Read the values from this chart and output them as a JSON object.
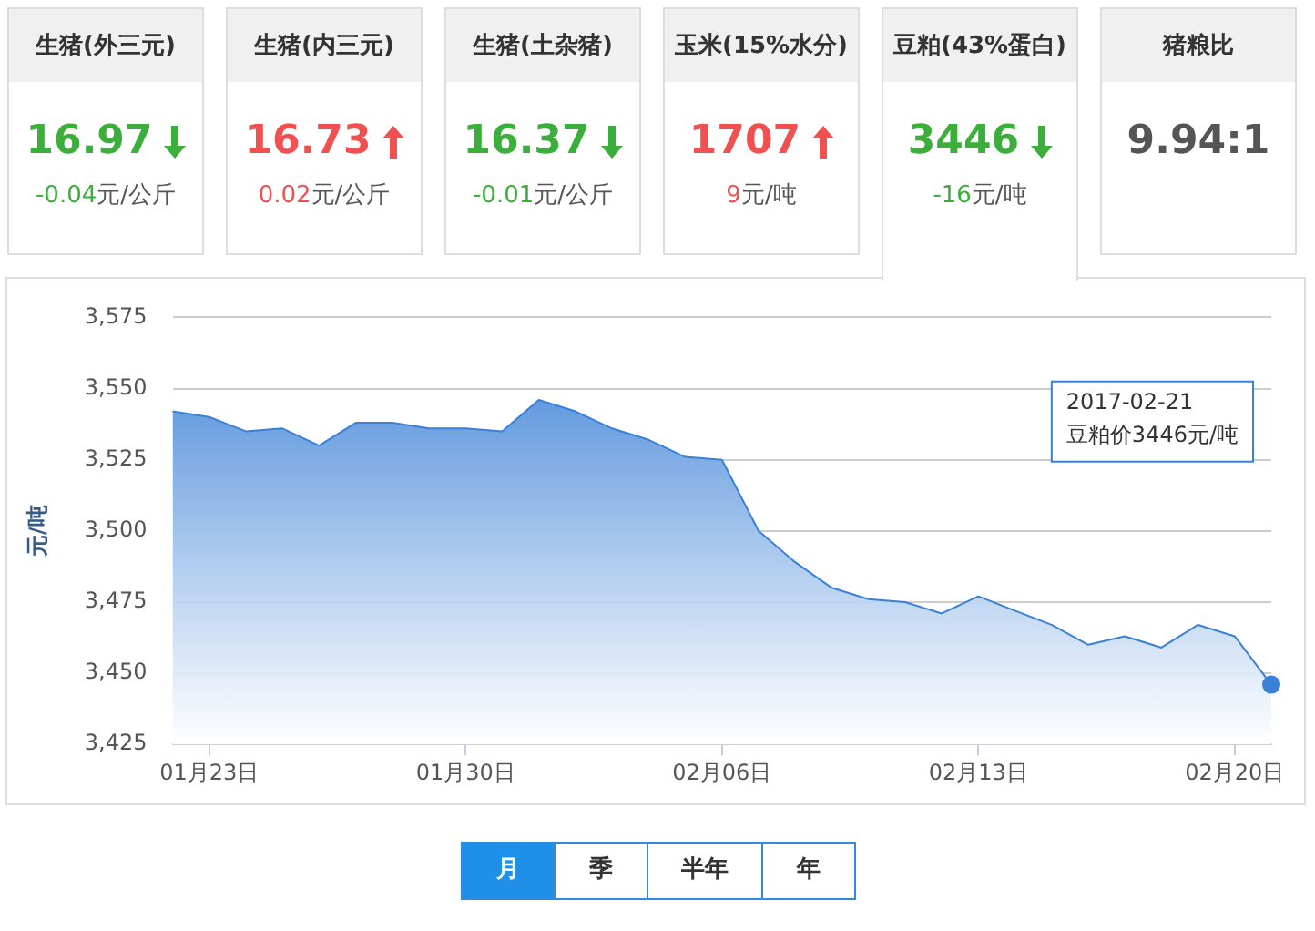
{
  "chart_data": [
    {
      "type": "other",
      "categories": [
        "生猪(外三元)",
        "生猪(内三元)",
        "生猪(土杂猪)",
        "玉米(15%水分)",
        "豆粕(43%蛋白)",
        "猪粮比"
      ],
      "value_labels": [
        "16.97",
        "16.73",
        "16.37",
        "1707",
        "3446",
        "9.94:1"
      ],
      "annotations": [
        "-0.04",
        "元/公斤",
        "0.02",
        "元/公斤",
        "-0.01",
        "元/公斤",
        "9",
        "元/吨",
        "-16",
        "元/吨"
      ]
    },
    {
      "type": "area",
      "ylabel": "元/吨",
      "categories": [
        null,
        "01月23日",
        null,
        null,
        null,
        null,
        null,
        null,
        "01月30日",
        null,
        null,
        null,
        null,
        null,
        null,
        "02月06日",
        null,
        null,
        null,
        null,
        null,
        null,
        "02月13日",
        null,
        null,
        null,
        null,
        null,
        null,
        "02月20日",
        null
      ],
      "series": [
        {
          "color": "#3a80d6",
          "values": [
            3542,
            3540,
            3535,
            3536,
            3530,
            3538,
            3538,
            3536,
            3536,
            3535,
            3546,
            3542,
            3536,
            3532,
            3526,
            3525,
            3500,
            3489,
            3480,
            3476,
            3475,
            3471,
            3477,
            3472,
            3467,
            3460,
            3463,
            3459,
            3467,
            3463,
            3446
          ]
        }
      ],
      "ylim": [
        3425,
        3575
      ],
      "yticks": [
        {
          "value": 3425,
          "label": "3,425"
        },
        {
          "value": 3450,
          "label": "3,450"
        },
        {
          "value": 3475,
          "label": "3,475"
        },
        {
          "value": 3500,
          "label": "3,500"
        },
        {
          "value": 3525,
          "label": "3,525"
        },
        {
          "value": 3550,
          "label": "3,550"
        },
        {
          "value": 3575,
          "label": "3,575"
        }
      ],
      "grid": "y",
      "legend": false,
      "marker": "none",
      "annotations": [
        "2017-02-21\n豆粕价3446元/吨",
        "月",
        "季",
        "半年",
        "年"
      ]
    }
  ]
}
